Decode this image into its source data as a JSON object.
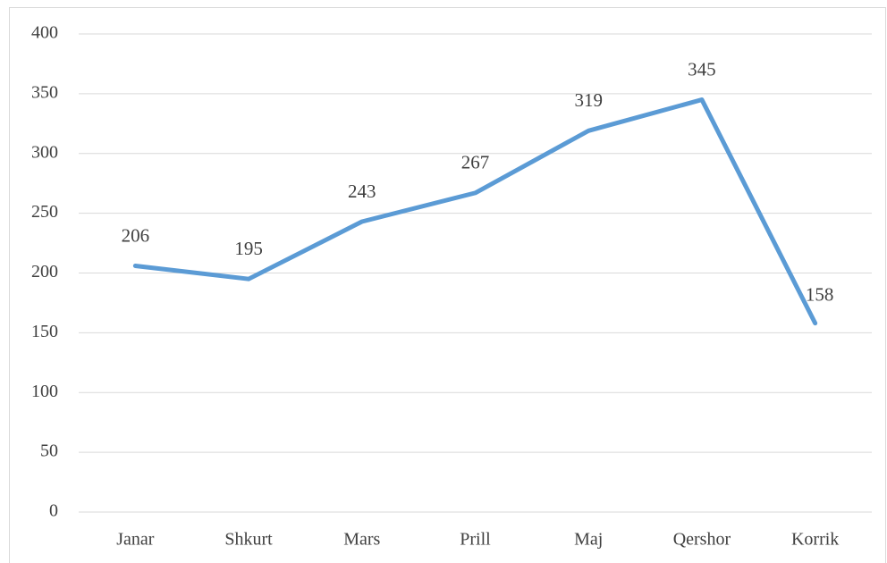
{
  "chart_data": {
    "type": "line",
    "categories": [
      "Janar",
      "Shkurt",
      "Mars",
      "Prill",
      "Maj",
      "Qershor",
      "Korrik"
    ],
    "values": [
      206,
      195,
      243,
      267,
      319,
      345,
      158
    ],
    "color": "#5b9bd5",
    "ylim": [
      0,
      400
    ],
    "yticks": [
      0,
      50,
      100,
      150,
      200,
      250,
      300,
      350,
      400
    ],
    "grid": true
  }
}
